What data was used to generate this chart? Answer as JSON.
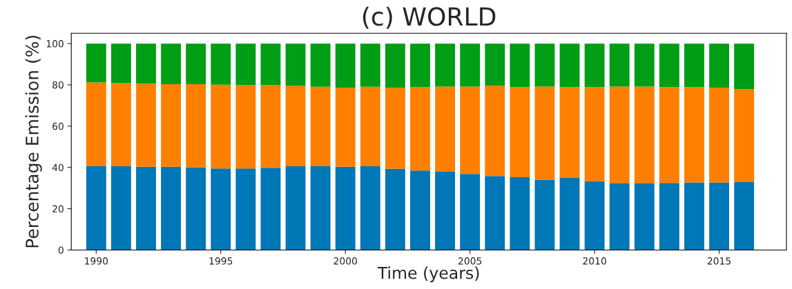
{
  "chart_data": {
    "type": "bar",
    "stacked": true,
    "title": "(c) WORLD",
    "xlabel": "Time (years)",
    "ylabel": "Percentage Emission (%)",
    "x": [
      1990,
      1991,
      1992,
      1993,
      1994,
      1995,
      1996,
      1997,
      1998,
      1999,
      2000,
      2001,
      2002,
      2003,
      2004,
      2005,
      2006,
      2007,
      2008,
      2009,
      2010,
      2011,
      2012,
      2013,
      2014,
      2015,
      2016
    ],
    "series": [
      {
        "color": "#0077b6",
        "values": [
          40.6,
          40.6,
          40.3,
          40.3,
          40.1,
          39.5,
          39.5,
          39.8,
          40.6,
          40.6,
          40.3,
          40.6,
          39.3,
          38.5,
          37.9,
          36.8,
          35.8,
          35.2,
          34.1,
          34.9,
          33.3,
          32.2,
          32.2,
          32.5,
          32.7,
          32.7,
          32.9
        ]
      },
      {
        "color": "#ff7f00",
        "values": [
          40.6,
          40.2,
          40.3,
          40.0,
          40.2,
          40.6,
          40.3,
          40.0,
          38.9,
          38.5,
          38.4,
          38.5,
          39.4,
          40.4,
          41.3,
          42.4,
          43.7,
          43.7,
          45.1,
          44.0,
          45.6,
          47.0,
          47.0,
          46.4,
          46.2,
          46.0,
          45.1
        ]
      },
      {
        "color": "#009e14",
        "values": [
          18.8,
          19.2,
          19.4,
          19.7,
          19.7,
          19.9,
          20.2,
          20.2,
          20.5,
          20.9,
          21.3,
          20.9,
          21.3,
          21.1,
          20.8,
          20.8,
          20.5,
          21.1,
          20.8,
          21.1,
          21.1,
          20.8,
          20.8,
          21.1,
          21.1,
          21.3,
          22.0
        ]
      }
    ],
    "xlim": [
      1989.0,
      2017.7
    ],
    "xticks": [
      1990,
      1995,
      2000,
      2005,
      2010,
      2015
    ],
    "ylim": [
      0,
      105
    ],
    "yticks": [
      0,
      20,
      40,
      60,
      80,
      100
    ],
    "grid": false
  }
}
